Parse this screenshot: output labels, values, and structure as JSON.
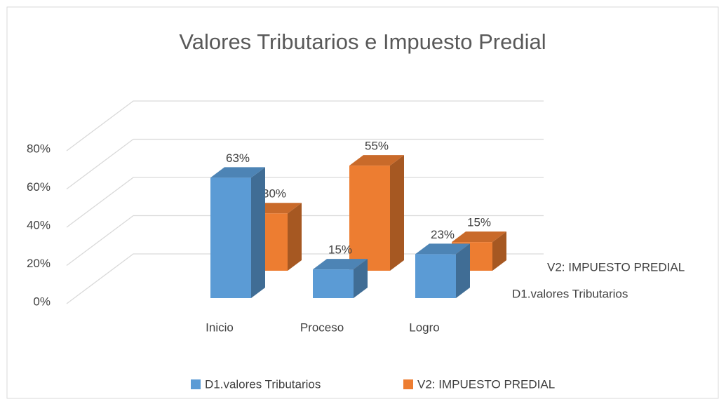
{
  "chart_data": {
    "type": "bar3d",
    "title": "Valores Tributarios e Impuesto Predial",
    "categories": [
      "Inicio",
      "Proceso",
      "Logro"
    ],
    "series": [
      {
        "name": "D1.valores Tributarios",
        "color": "#5b9bd5",
        "values": [
          63,
          15,
          23
        ],
        "value_labels": [
          "63%",
          "15%",
          "23%"
        ]
      },
      {
        "name": "V2: IMPUESTO PREDIAL",
        "color": "#ed7d31",
        "values": [
          30,
          55,
          15
        ],
        "value_labels": [
          "30%",
          "55%",
          "15%"
        ]
      }
    ],
    "ylim": [
      0,
      80
    ],
    "yticks": [
      {
        "value": 0,
        "label": "0%"
      },
      {
        "value": 20,
        "label": "20%"
      },
      {
        "value": 40,
        "label": "40%"
      },
      {
        "value": 60,
        "label": "60%"
      },
      {
        "value": 80,
        "label": "80%"
      }
    ],
    "grid": true,
    "legend": "bottom"
  }
}
